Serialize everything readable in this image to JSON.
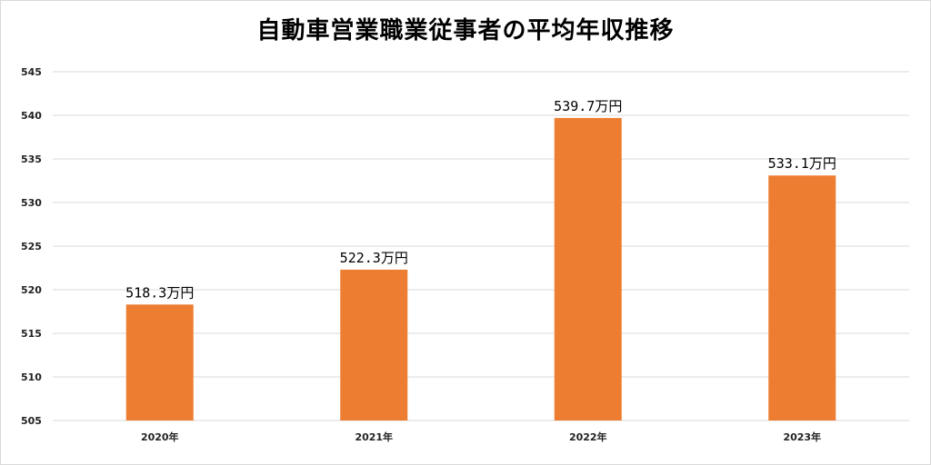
{
  "chart_data": {
    "type": "bar",
    "title": "自動車営業職業従事者の平均年収推移",
    "categories": [
      "2020年",
      "2021年",
      "2022年",
      "2023年"
    ],
    "values": [
      518.3,
      522.3,
      539.7,
      533.1
    ],
    "data_labels": [
      "518.3万円",
      "522.3万円",
      "539.7万円",
      "533.1万円"
    ],
    "ylim": [
      505,
      545
    ],
    "yticks": [
      505,
      510,
      515,
      520,
      525,
      530,
      535,
      540,
      545
    ],
    "ytick_labels": [
      "505",
      "510",
      "515",
      "520",
      "525",
      "530",
      "535",
      "540",
      "545"
    ],
    "grid": true,
    "legend": "none",
    "bar_color": "#ED7D31",
    "grid_color": "#D9D9D9"
  }
}
